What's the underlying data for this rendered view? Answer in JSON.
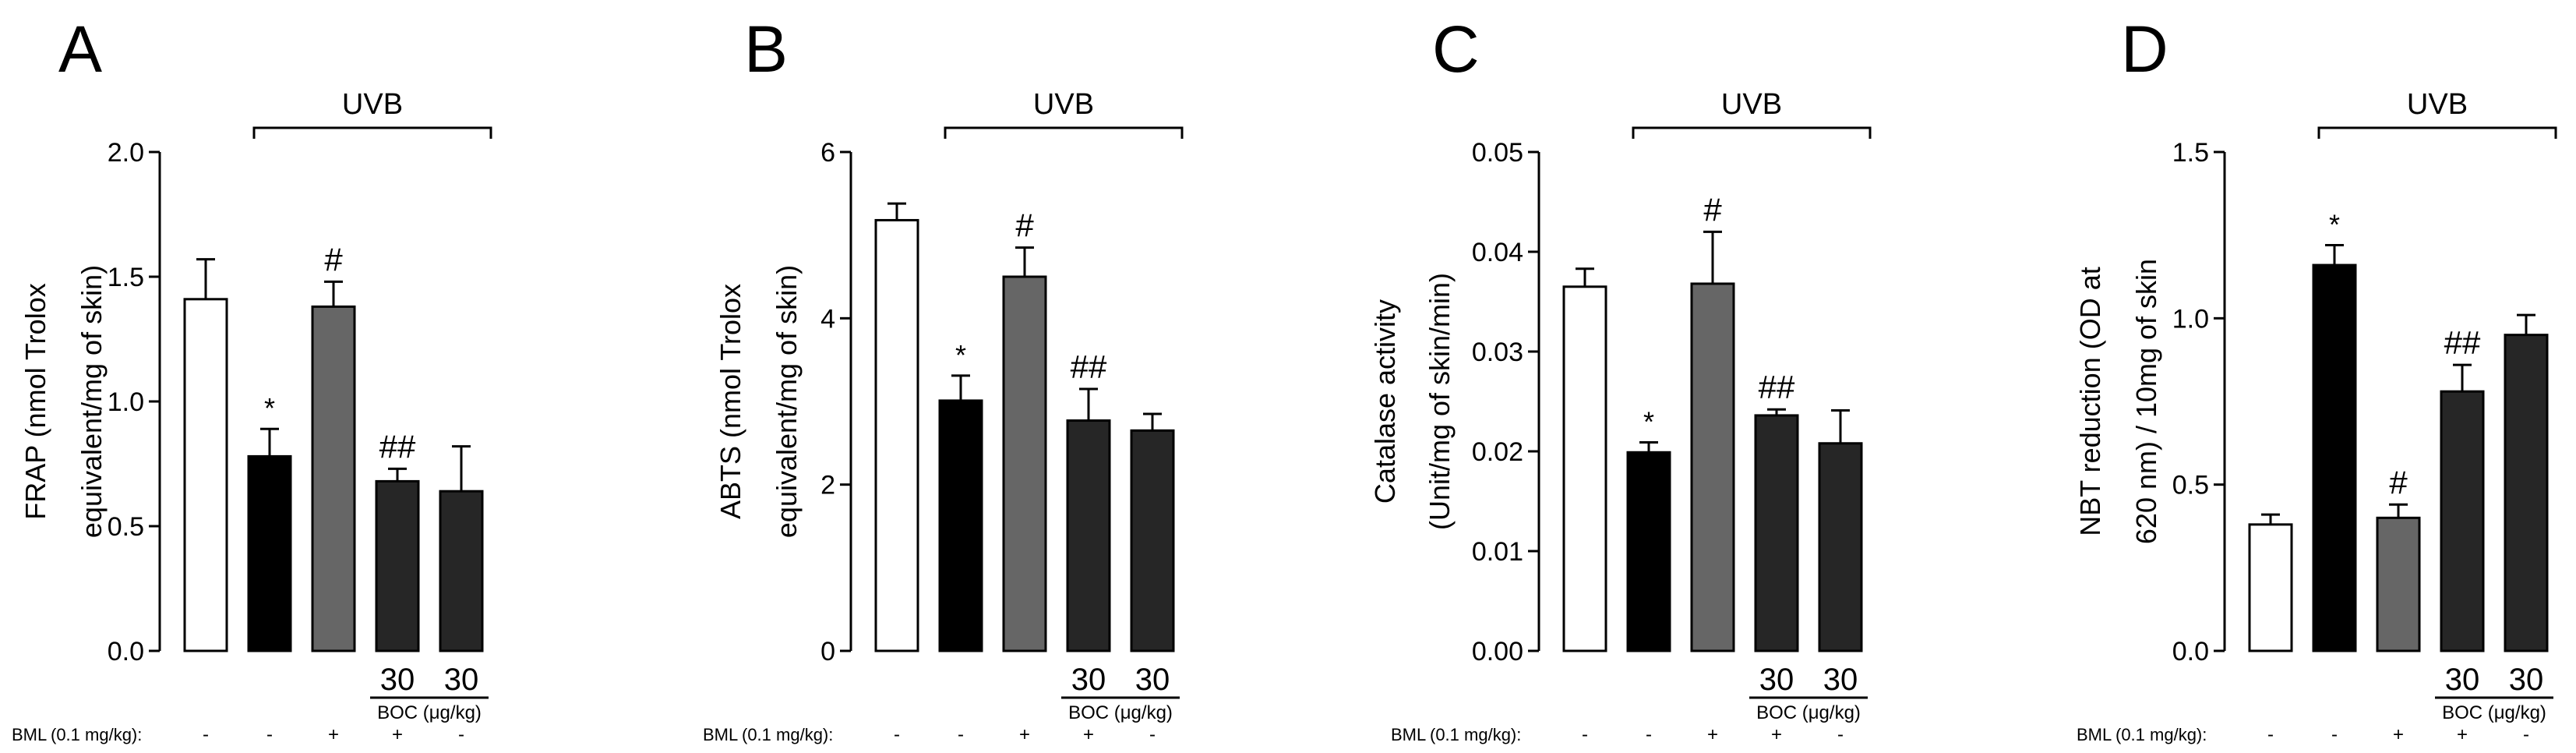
{
  "colors": {
    "control": "#ffffff",
    "uvb": "#000000",
    "bml": "#666666",
    "boc": "#262626",
    "axis": "#000000"
  },
  "row_labels": {
    "bml": "BML",
    "bml_dose": "(0.1 mg/kg):",
    "boc_dose": "30",
    "boc_label": "BOC (μg/kg)"
  },
  "conditions": {
    "uvb_label": "UVB",
    "bml_signs": [
      "-",
      "-",
      "+",
      "+",
      "-"
    ]
  },
  "chart_data": [
    {
      "panel": "A",
      "type": "bar",
      "ylabel": [
        "FRAP (nmol Trolox",
        "equivalent/mg of skin)"
      ],
      "ylim": [
        0,
        2.0
      ],
      "ticks": [
        "0.0",
        "0.5",
        "1.0",
        "1.5",
        "2.0"
      ],
      "tick_values": [
        0,
        0.5,
        1.0,
        1.5,
        2.0
      ],
      "values": [
        1.41,
        0.78,
        1.38,
        0.68,
        0.64
      ],
      "errors": [
        0.16,
        0.11,
        0.1,
        0.05,
        0.18
      ],
      "annotations": [
        "",
        "*",
        "#",
        "##",
        ""
      ]
    },
    {
      "panel": "B",
      "type": "bar",
      "ylabel": [
        "ABTS (nmol Trolox",
        "equivalent/mg of skin)"
      ],
      "ylim": [
        0,
        6
      ],
      "ticks": [
        "0",
        "2",
        "4",
        "6"
      ],
      "tick_values": [
        0,
        2,
        4,
        6
      ],
      "values": [
        5.18,
        3.01,
        4.5,
        2.77,
        2.65
      ],
      "errors": [
        0.2,
        0.3,
        0.35,
        0.38,
        0.2
      ],
      "annotations": [
        "",
        "*",
        "#",
        "##",
        ""
      ]
    },
    {
      "panel": "C",
      "type": "bar",
      "ylabel": [
        "Catalase activity",
        "(Unit/mg of skin/min)"
      ],
      "ylim": [
        0,
        0.05
      ],
      "ticks": [
        "0.00",
        "0.01",
        "0.02",
        "0.03",
        "0.04",
        "0.05"
      ],
      "tick_values": [
        0,
        0.01,
        0.02,
        0.03,
        0.04,
        0.05
      ],
      "values": [
        0.0365,
        0.0199,
        0.0368,
        0.0236,
        0.0208
      ],
      "errors": [
        0.0018,
        0.001,
        0.0052,
        0.0006,
        0.0033
      ],
      "annotations": [
        "",
        "*",
        "#",
        "##",
        ""
      ]
    },
    {
      "panel": "D",
      "type": "bar",
      "ylabel": [
        "NBT reduction (OD at",
        "620 nm) / 10mg of skin"
      ],
      "ylim": [
        0,
        1.5
      ],
      "ticks": [
        "0.0",
        "0.5",
        "1.0",
        "1.5"
      ],
      "tick_values": [
        0,
        0.5,
        1.0,
        1.5
      ],
      "values": [
        0.38,
        1.16,
        0.4,
        0.78,
        0.95
      ],
      "errors": [
        0.03,
        0.06,
        0.04,
        0.08,
        0.06
      ],
      "annotations": [
        "",
        "*",
        "#",
        "##",
        ""
      ]
    }
  ]
}
